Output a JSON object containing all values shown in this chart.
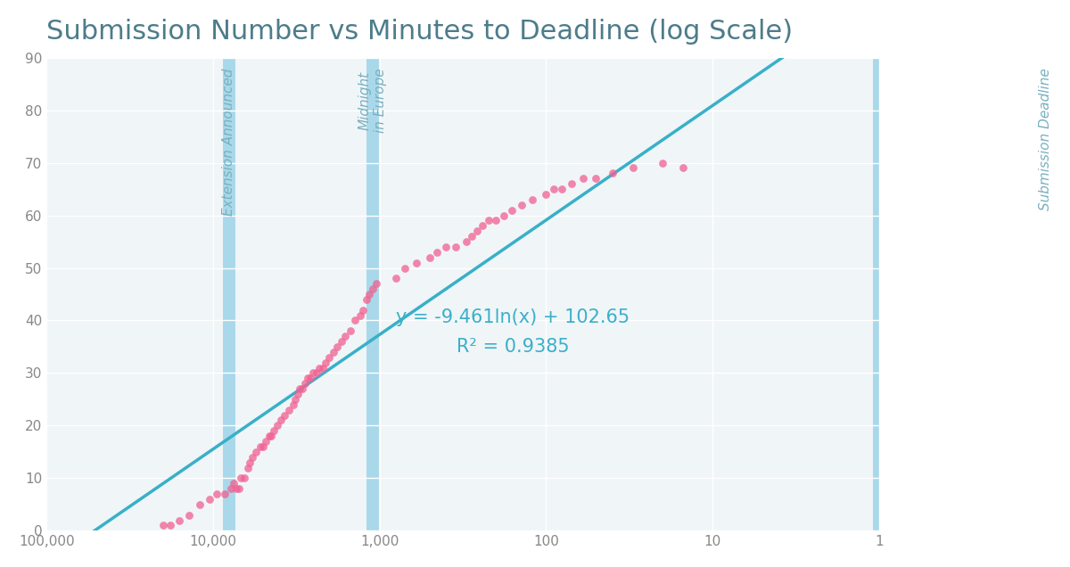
{
  "title": "Submission Number vs Minutes to Deadline (log Scale)",
  "title_color": "#4d7c8a",
  "title_fontsize": 22,
  "background_color": "#ffffff",
  "plot_bg_color": "#f0f5f8",
  "equation_line1": "y = -9.461ln(x) + 102.65",
  "equation_line2": "R² = 0.9385",
  "equation_color": "#3ab0c8",
  "equation_fontsize": 15,
  "vline1_x": 8000,
  "vline1_label": "Extension Announced",
  "vline2_x": 1100,
  "vline2_label": "Midnight\nin Europe",
  "vline3_x": 1,
  "vline3_label": "Submission Deadline",
  "vline_color": "#a8d8ea",
  "vline_text_color": "#7ab0c0",
  "vline_linewidth": 10,
  "scatter_color": "#f06090",
  "scatter_alpha": 0.75,
  "scatter_size": 40,
  "line_color": "#38b0c8",
  "line_width": 2.5,
  "regression_a": -9.461,
  "regression_b": 102.65,
  "ylim": [
    0,
    90
  ],
  "xlim_left": 100000,
  "xlim_right": 1,
  "xticks": [
    100000,
    10000,
    1000,
    100,
    10,
    1
  ],
  "yticks": [
    0,
    10,
    20,
    30,
    40,
    50,
    60,
    70,
    80,
    90
  ],
  "scatter_x": [
    20000,
    18000,
    16000,
    14000,
    12000,
    10500,
    9500,
    8500,
    7800,
    7500,
    7200,
    7000,
    6800,
    6500,
    6200,
    6000,
    5800,
    5500,
    5200,
    5000,
    4800,
    4600,
    4500,
    4300,
    4100,
    3900,
    3700,
    3500,
    3300,
    3200,
    3100,
    3000,
    2900,
    2800,
    2700,
    2600,
    2500,
    2400,
    2300,
    2200,
    2100,
    2000,
    1900,
    1800,
    1700,
    1600,
    1500,
    1400,
    1300,
    1250,
    1200,
    1150,
    1100,
    1050,
    800,
    700,
    600,
    500,
    450,
    400,
    350,
    300,
    280,
    260,
    240,
    220,
    200,
    180,
    160,
    140,
    120,
    100,
    90,
    80,
    70,
    60,
    50,
    40,
    30,
    20,
    15
  ],
  "scatter_y": [
    1,
    1,
    2,
    3,
    5,
    6,
    7,
    7,
    8,
    9,
    8,
    8,
    10,
    10,
    12,
    13,
    14,
    15,
    16,
    16,
    17,
    18,
    18,
    19,
    20,
    21,
    22,
    23,
    24,
    25,
    26,
    27,
    27,
    28,
    29,
    29,
    30,
    30,
    31,
    31,
    32,
    33,
    34,
    35,
    36,
    37,
    38,
    40,
    41,
    42,
    44,
    45,
    46,
    47,
    48,
    50,
    51,
    52,
    53,
    54,
    54,
    55,
    56,
    57,
    58,
    59,
    59,
    60,
    61,
    62,
    63,
    64,
    65,
    65,
    66,
    67,
    67,
    68,
    69,
    70,
    69
  ]
}
